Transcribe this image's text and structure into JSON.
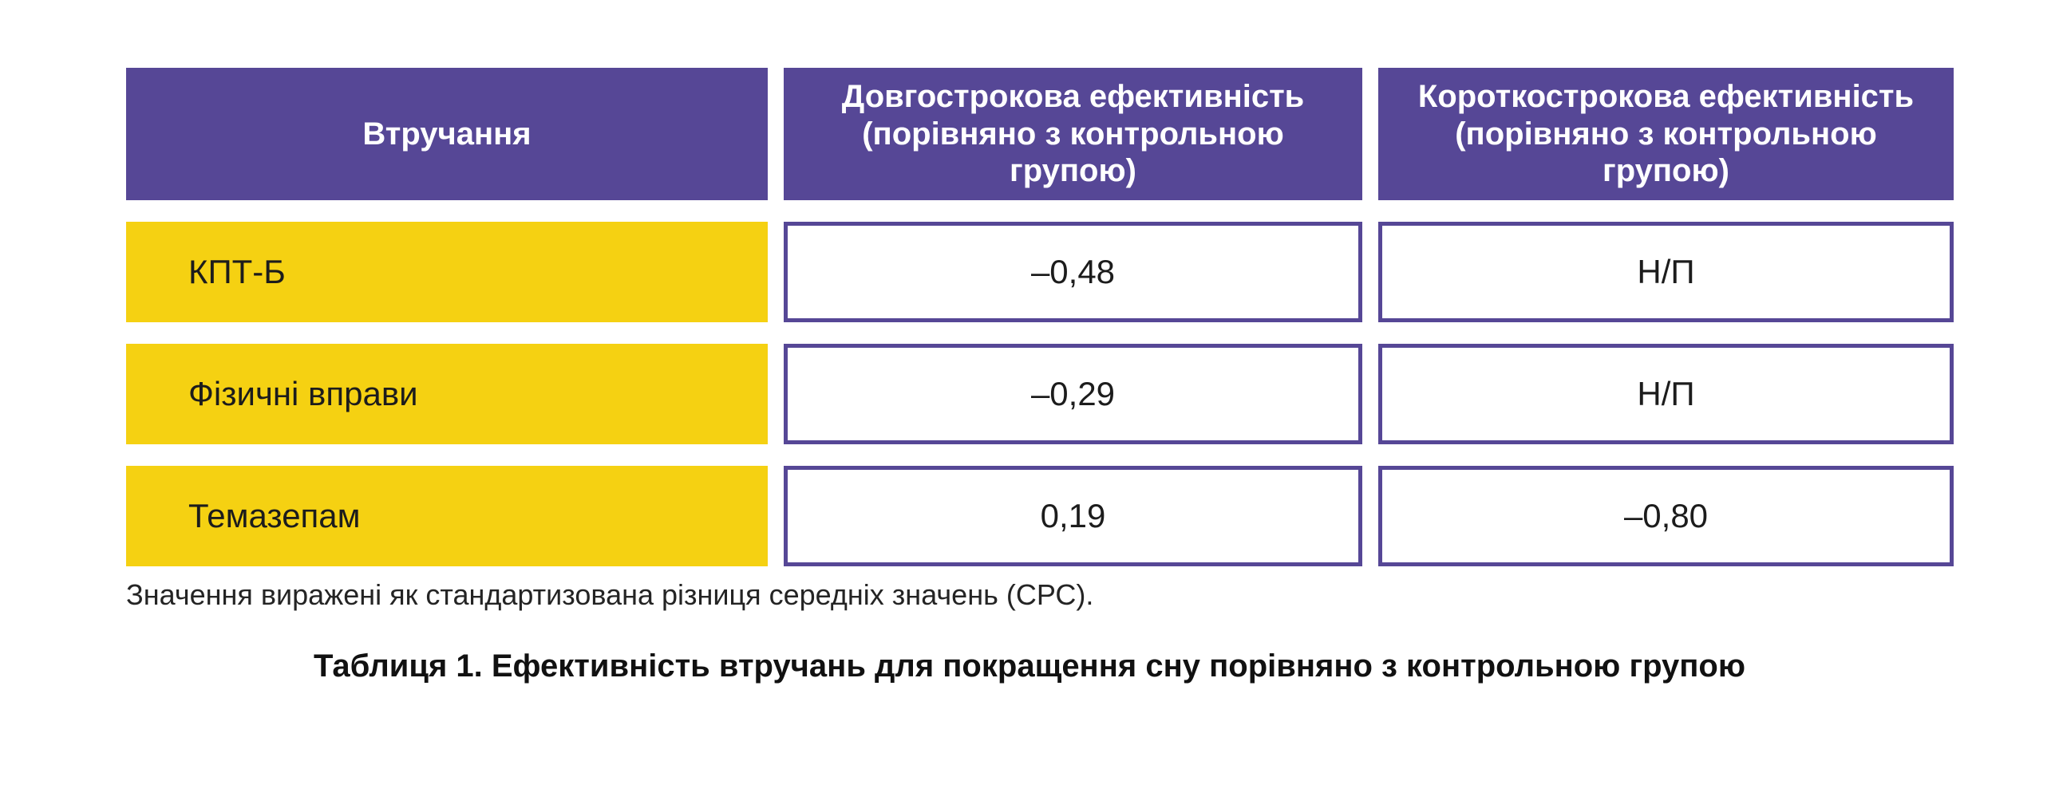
{
  "colors": {
    "header_bg": "#564796",
    "header_text": "#ffffff",
    "row_label_bg": "#f5d112",
    "cell_border": "#564796",
    "body_text": "#1c1c1c",
    "page_bg": "#ffffff"
  },
  "table": {
    "columns": [
      {
        "label": "Втручання"
      },
      {
        "label": "Довгострокова ефективність (порівняно з контрольною групою)"
      },
      {
        "label": "Короткострокова ефективність (порівняно з контрольною групою)"
      }
    ],
    "rows": [
      {
        "intervention": "КПТ-Б",
        "long_term": "–0,48",
        "short_term": "Н/П"
      },
      {
        "intervention": "Фізичні вправи",
        "long_term": "–0,29",
        "short_term": "Н/П"
      },
      {
        "intervention": "Темазепам",
        "long_term": "0,19",
        "short_term": "–0,80"
      }
    ]
  },
  "footnote": "Значення виражені як стандартизована різниця середніх значень (СРС).",
  "caption": "Таблиця 1. Ефективність втручань для покращення сну порівняно з контрольною групою",
  "chart_data": {
    "type": "table",
    "title": "Таблиця 1. Ефективність втручань для покращення сну порівняно з контрольною групою",
    "columns": [
      "Втручання",
      "Довгострокова ефективність (порівняно з контрольною групою)",
      "Короткострокова ефективність (порівняно з контрольною групою)"
    ],
    "rows": [
      {
        "intervention": "КПТ-Б",
        "long_term_smd": -0.48,
        "short_term_smd": null
      },
      {
        "intervention": "Фізичні вправи",
        "long_term_smd": -0.29,
        "short_term_smd": null
      },
      {
        "intervention": "Темазепам",
        "long_term_smd": 0.19,
        "short_term_smd": -0.8
      }
    ],
    "na_label": "Н/П",
    "units": "стандартизована різниця середніх значень (СРС)",
    "decimal_separator": ","
  }
}
